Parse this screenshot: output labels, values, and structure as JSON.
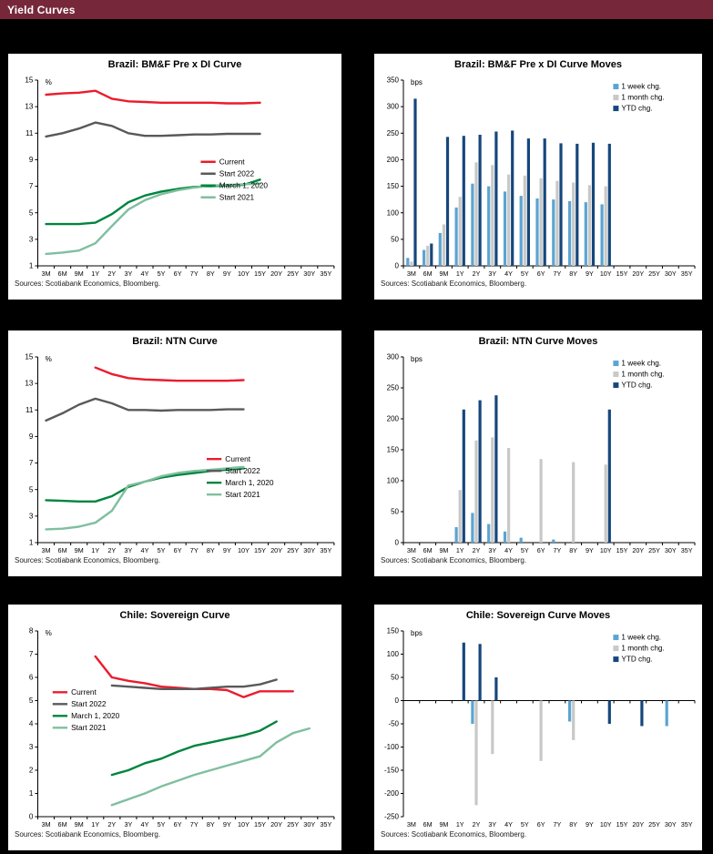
{
  "page": {
    "title": "Yield Curves",
    "header_bg": "#76283A",
    "background": "#000000"
  },
  "sources_note": "Sources: Scotiabank Economics, Bloomberg.",
  "palette": {
    "current": "#EB1C2D",
    "start_2022": "#58595B",
    "march_2020": "#00843D",
    "start_2021": "#7FBF9F",
    "week_chg": "#5BA4D2",
    "month_chg": "#C8C9C7",
    "ytd_chg": "#16477C"
  },
  "chart_data": [
    {
      "type": "line",
      "title": "Brazil: BM&F Pre x DI Curve",
      "unit": "%",
      "ylim": [
        1,
        15
      ],
      "yticks": [
        1,
        3,
        5,
        7,
        9,
        11,
        13,
        15
      ],
      "categories": [
        "3M",
        "6M",
        "9M",
        "1Y",
        "2Y",
        "3Y",
        "4Y",
        "5Y",
        "6Y",
        "7Y",
        "8Y",
        "9Y",
        "10Y",
        "15Y",
        "20Y",
        "25Y",
        "30Y",
        "35Y"
      ],
      "legend_pos": {
        "x": 0.55,
        "y": 0.44
      },
      "series": [
        {
          "name": "Current",
          "color": "#EB1C2D",
          "values": [
            13.9,
            14.0,
            14.05,
            14.2,
            13.6,
            13.4,
            13.35,
            13.3,
            13.3,
            13.3,
            13.3,
            13.25,
            13.25,
            13.3,
            null,
            null,
            null,
            null
          ]
        },
        {
          "name": "Start 2022",
          "color": "#58595B",
          "values": [
            10.75,
            11.0,
            11.35,
            11.8,
            11.55,
            11.0,
            10.8,
            10.8,
            10.85,
            10.9,
            10.9,
            10.95,
            10.95,
            10.95,
            null,
            null,
            null,
            null
          ]
        },
        {
          "name": "March 1, 2020",
          "color": "#00843D",
          "values": [
            4.15,
            4.15,
            4.15,
            4.25,
            4.9,
            5.8,
            6.3,
            6.6,
            6.8,
            6.95,
            7.0,
            7.05,
            7.1,
            7.5,
            null,
            null,
            null,
            null
          ]
        },
        {
          "name": "Start 2021",
          "color": "#7FBF9F",
          "values": [
            1.9,
            2.0,
            2.15,
            2.7,
            4.0,
            5.25,
            5.95,
            6.4,
            6.7,
            6.9,
            7.05,
            7.1,
            7.15,
            7.2,
            null,
            null,
            null,
            null
          ]
        }
      ]
    },
    {
      "type": "bar",
      "title": "Brazil: BM&F Pre x DI Curve Moves",
      "unit": "bps",
      "ylim": [
        0,
        350
      ],
      "yticks": [
        0,
        50,
        100,
        150,
        200,
        250,
        300,
        350
      ],
      "categories": [
        "3M",
        "6M",
        "9M",
        "1Y",
        "2Y",
        "3Y",
        "4Y",
        "5Y",
        "6Y",
        "7Y",
        "8Y",
        "9Y",
        "10Y",
        "15Y",
        "20Y",
        "25Y",
        "30Y",
        "35Y"
      ],
      "legend_pos": {
        "x": 0.72,
        "y": 0.02
      },
      "series": [
        {
          "name": "1 week chg.",
          "color": "#5BA4D2",
          "values": [
            15,
            30,
            62,
            110,
            155,
            150,
            140,
            132,
            127,
            125,
            122,
            120,
            116,
            0,
            0,
            0,
            0,
            0
          ]
        },
        {
          "name": "1 month chg.",
          "color": "#C8C9C7",
          "values": [
            8,
            38,
            78,
            130,
            195,
            190,
            172,
            170,
            165,
            160,
            157,
            152,
            150,
            0,
            0,
            0,
            0,
            0
          ]
        },
        {
          "name": "YTD chg.",
          "color": "#16477C",
          "values": [
            315,
            42,
            243,
            245,
            247,
            253,
            255,
            240,
            240,
            231,
            230,
            232,
            230,
            0,
            0,
            0,
            0,
            0
          ]
        }
      ]
    },
    {
      "type": "line",
      "title": "Brazil: NTN Curve",
      "unit": "%",
      "ylim": [
        1,
        15
      ],
      "yticks": [
        1,
        3,
        5,
        7,
        9,
        11,
        13,
        15
      ],
      "categories": [
        "3M",
        "6M",
        "9M",
        "1Y",
        "2Y",
        "3Y",
        "4Y",
        "5Y",
        "6Y",
        "7Y",
        "8Y",
        "9Y",
        "10Y",
        "15Y",
        "20Y",
        "25Y",
        "30Y",
        "35Y"
      ],
      "legend_pos": {
        "x": 0.57,
        "y": 0.55
      },
      "series": [
        {
          "name": "Current",
          "color": "#EB1C2D",
          "values": [
            null,
            null,
            null,
            14.2,
            13.7,
            13.4,
            13.3,
            13.25,
            13.2,
            13.2,
            13.2,
            13.2,
            13.25,
            null,
            null,
            null,
            null,
            null
          ]
        },
        {
          "name": "Start 2022",
          "color": "#58595B",
          "values": [
            10.2,
            10.75,
            11.4,
            11.85,
            11.5,
            11.0,
            11.0,
            10.95,
            11.0,
            11.0,
            11.0,
            11.05,
            11.05,
            null,
            null,
            null,
            null,
            null
          ]
        },
        {
          "name": "March 1, 2020",
          "color": "#00843D",
          "values": [
            4.2,
            4.15,
            4.1,
            4.1,
            4.5,
            5.2,
            5.6,
            5.9,
            6.1,
            6.25,
            6.4,
            6.5,
            6.6,
            null,
            null,
            null,
            null,
            null
          ]
        },
        {
          "name": "Start 2021",
          "color": "#7FBF9F",
          "values": [
            2.0,
            2.05,
            2.2,
            2.5,
            3.4,
            5.3,
            5.6,
            6.0,
            6.25,
            6.4,
            6.5,
            6.6,
            6.7,
            null,
            null,
            null,
            null,
            null
          ]
        }
      ]
    },
    {
      "type": "bar",
      "title": "Brazil: NTN Curve Moves",
      "unit": "bps",
      "ylim": [
        0,
        300
      ],
      "yticks": [
        0,
        50,
        100,
        150,
        200,
        250,
        300
      ],
      "categories": [
        "3M",
        "6M",
        "9M",
        "1Y",
        "2Y",
        "3Y",
        "4Y",
        "5Y",
        "6Y",
        "7Y",
        "8Y",
        "9Y",
        "10Y",
        "15Y",
        "20Y",
        "25Y",
        "30Y",
        "35Y"
      ],
      "legend_pos": {
        "x": 0.72,
        "y": 0.02
      },
      "series": [
        {
          "name": "1 week chg.",
          "color": "#5BA4D2",
          "values": [
            0,
            0,
            0,
            25,
            48,
            30,
            18,
            8,
            0,
            5,
            0,
            0,
            0,
            0,
            0,
            0,
            0,
            0
          ]
        },
        {
          "name": "1 month chg.",
          "color": "#C8C9C7",
          "values": [
            0,
            0,
            0,
            85,
            165,
            170,
            153,
            0,
            135,
            0,
            130,
            0,
            126,
            0,
            0,
            0,
            0,
            0
          ]
        },
        {
          "name": "YTD chg.",
          "color": "#16477C",
          "values": [
            0,
            0,
            0,
            215,
            230,
            238,
            0,
            0,
            0,
            0,
            0,
            0,
            215,
            0,
            0,
            0,
            0,
            0
          ]
        }
      ]
    },
    {
      "type": "line",
      "title": "Chile: Sovereign Curve",
      "unit": "%",
      "ylim": [
        0,
        8
      ],
      "yticks": [
        0,
        1,
        2,
        3,
        4,
        5,
        6,
        7,
        8
      ],
      "categories": [
        "3M",
        "6M",
        "9M",
        "1Y",
        "2Y",
        "3Y",
        "4Y",
        "5Y",
        "6Y",
        "7Y",
        "8Y",
        "9Y",
        "10Y",
        "15Y",
        "20Y",
        "25Y",
        "30Y",
        "35Y"
      ],
      "legend_pos": {
        "x": 0.05,
        "y": 0.33
      },
      "series": [
        {
          "name": "Current",
          "color": "#EB1C2D",
          "values": [
            null,
            null,
            null,
            6.9,
            6.0,
            5.85,
            5.75,
            5.6,
            5.55,
            5.5,
            5.5,
            5.45,
            5.15,
            5.4,
            5.4,
            5.4,
            null,
            null
          ]
        },
        {
          "name": "Start 2022",
          "color": "#58595B",
          "values": [
            null,
            null,
            null,
            null,
            5.65,
            5.6,
            5.55,
            5.5,
            5.5,
            5.5,
            5.55,
            5.6,
            5.6,
            5.7,
            5.9,
            null,
            null,
            null
          ]
        },
        {
          "name": "March 1, 2020",
          "color": "#00843D",
          "values": [
            null,
            null,
            null,
            null,
            1.8,
            2.0,
            2.3,
            2.5,
            2.8,
            3.05,
            3.2,
            3.35,
            3.5,
            3.7,
            4.1,
            null,
            null,
            null
          ]
        },
        {
          "name": "Start 2021",
          "color": "#7FBF9F",
          "values": [
            null,
            null,
            null,
            null,
            0.5,
            0.75,
            1.0,
            1.3,
            1.55,
            1.8,
            2.0,
            2.2,
            2.4,
            2.6,
            3.2,
            3.6,
            3.8,
            null
          ]
        }
      ]
    },
    {
      "type": "bar",
      "title": "Chile: Sovereign Curve Moves",
      "unit": "bps",
      "ylim": [
        -250,
        150
      ],
      "yticks": [
        -250,
        -200,
        -150,
        -100,
        -50,
        0,
        50,
        100,
        150
      ],
      "categories": [
        "3M",
        "6M",
        "9M",
        "1Y",
        "2Y",
        "3Y",
        "4Y",
        "5Y",
        "6Y",
        "7Y",
        "8Y",
        "9Y",
        "10Y",
        "15Y",
        "20Y",
        "25Y",
        "30Y",
        "35Y"
      ],
      "legend_pos": {
        "x": 0.72,
        "y": 0.02
      },
      "series": [
        {
          "name": "1 week chg.",
          "color": "#5BA4D2",
          "values": [
            0,
            0,
            0,
            0,
            -50,
            0,
            0,
            0,
            0,
            0,
            -45,
            0,
            0,
            0,
            0,
            0,
            -55,
            0
          ]
        },
        {
          "name": "1 month chg.",
          "color": "#C8C9C7",
          "values": [
            0,
            0,
            0,
            0,
            -225,
            -115,
            0,
            0,
            -130,
            0,
            -85,
            0,
            0,
            0,
            0,
            0,
            0,
            0
          ]
        },
        {
          "name": "YTD chg.",
          "color": "#16477C",
          "values": [
            0,
            0,
            0,
            125,
            122,
            50,
            0,
            0,
            0,
            0,
            0,
            0,
            -50,
            0,
            -55,
            0,
            0,
            0
          ]
        }
      ]
    }
  ]
}
